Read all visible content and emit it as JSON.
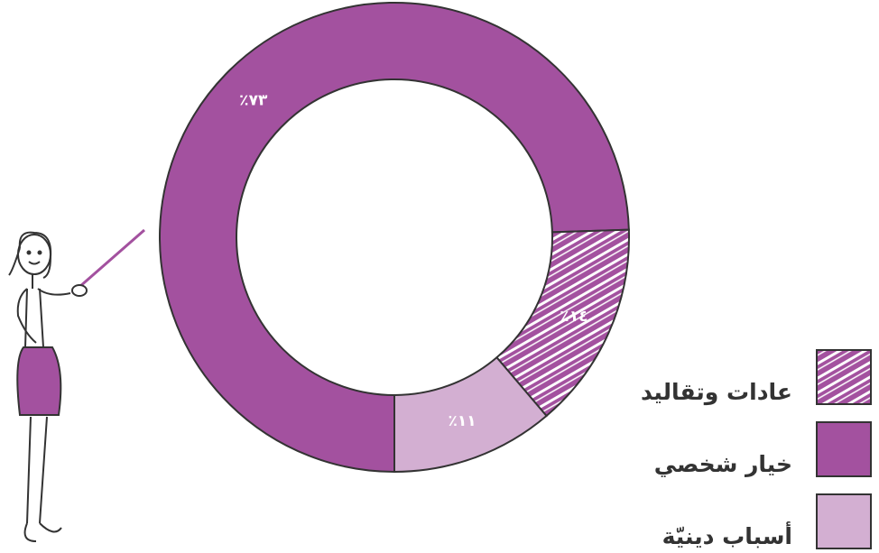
{
  "chart_data": {
    "type": "donut",
    "categories": [
      "خيار شخصي",
      "عادات وتقاليد",
      "أسباب دينيّة"
    ],
    "values": [
      73,
      14,
      11
    ],
    "value_labels": [
      "٪٧٣",
      "٪١٤",
      "٪١١"
    ],
    "colors": [
      "#a3519f",
      "#a3519f",
      "#d3afd2"
    ],
    "hatched": [
      false,
      true,
      false
    ]
  }
}
